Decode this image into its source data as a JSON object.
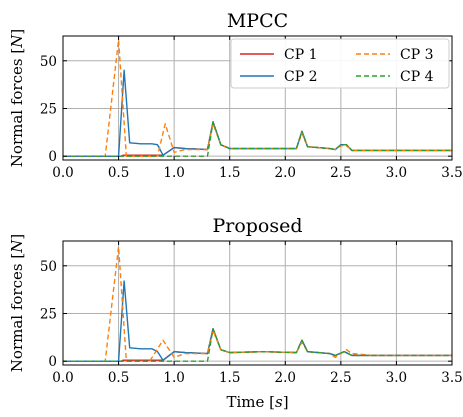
{
  "figure": {
    "xlabel": "Time [$s$]",
    "xlabel_text": "Time [",
    "xlabel_unit": "s",
    "xlabel_close": "]"
  },
  "legend": {
    "entries": [
      "CP 1",
      "CP 2",
      "CP 3",
      "CP 4"
    ]
  },
  "chart_data": [
    {
      "type": "line",
      "title": "MPCC",
      "xlabel": "",
      "ylabel_text": "Normal forces [",
      "ylabel_unit": "N",
      "ylabel_close": "]",
      "xlim": [
        0.0,
        3.5
      ],
      "ylim": [
        -2,
        63
      ],
      "xticks": [
        "0.0",
        "0.5",
        "1.0",
        "1.5",
        "2.0",
        "2.5",
        "3.0",
        "3.5"
      ],
      "yticks": [
        "0",
        "25",
        "50"
      ],
      "grid": true,
      "legend_position": "top-right",
      "series": [
        {
          "name": "CP 1",
          "color": "#d62728",
          "dash": false,
          "points": [
            [
              0,
              0
            ],
            [
              0.52,
              0
            ],
            [
              0.54,
              0.5
            ],
            [
              0.9,
              0.5
            ],
            [
              1.0,
              4.5
            ],
            [
              1.1,
              4.0
            ],
            [
              1.3,
              3.5
            ],
            [
              1.35,
              18
            ],
            [
              1.42,
              6
            ],
            [
              1.5,
              4
            ],
            [
              2.1,
              4
            ],
            [
              2.15,
              13
            ],
            [
              2.2,
              5
            ],
            [
              2.4,
              4
            ],
            [
              2.45,
              3.5
            ],
            [
              2.5,
              6
            ],
            [
              2.55,
              6
            ],
            [
              2.6,
              3
            ],
            [
              3.5,
              3
            ]
          ]
        },
        {
          "name": "CP 2",
          "color": "#1f77b4",
          "dash": false,
          "points": [
            [
              0,
              0
            ],
            [
              0.5,
              0
            ],
            [
              0.55,
              45
            ],
            [
              0.6,
              7
            ],
            [
              0.7,
              6.5
            ],
            [
              0.8,
              6.5
            ],
            [
              0.85,
              6
            ],
            [
              0.9,
              0.5
            ],
            [
              1.0,
              4.5
            ],
            [
              1.1,
              4.0
            ],
            [
              1.3,
              3.5
            ],
            [
              1.35,
              18
            ],
            [
              1.42,
              6
            ],
            [
              1.5,
              4
            ],
            [
              2.1,
              4
            ],
            [
              2.15,
              13
            ],
            [
              2.2,
              5
            ],
            [
              2.4,
              4
            ],
            [
              2.45,
              3.5
            ],
            [
              2.5,
              6
            ],
            [
              2.55,
              6
            ],
            [
              2.6,
              3
            ],
            [
              3.5,
              3
            ]
          ]
        },
        {
          "name": "CP 3",
          "color": "#ff7f0e",
          "dash": true,
          "points": [
            [
              0,
              0
            ],
            [
              0.38,
              0
            ],
            [
              0.5,
              61
            ],
            [
              0.57,
              0
            ],
            [
              0.85,
              0
            ],
            [
              0.92,
              17
            ],
            [
              1.0,
              2
            ],
            [
              1.1,
              3.5
            ],
            [
              1.3,
              3.5
            ],
            [
              1.35,
              17
            ],
            [
              1.42,
              6
            ],
            [
              1.5,
              4
            ],
            [
              2.1,
              4
            ],
            [
              2.15,
              12
            ],
            [
              2.2,
              5
            ],
            [
              2.4,
              4
            ],
            [
              2.45,
              3.5
            ],
            [
              2.5,
              5.5
            ],
            [
              2.55,
              5.5
            ],
            [
              2.6,
              3
            ],
            [
              3.5,
              3
            ]
          ]
        },
        {
          "name": "CP 4",
          "color": "#2ca02c",
          "dash": true,
          "points": [
            [
              0,
              0
            ],
            [
              1.3,
              0
            ],
            [
              1.35,
              18
            ],
            [
              1.42,
              6
            ],
            [
              1.5,
              4
            ],
            [
              2.1,
              4
            ],
            [
              2.15,
              13
            ],
            [
              2.2,
              5
            ],
            [
              2.4,
              4
            ],
            [
              2.45,
              3.5
            ],
            [
              2.5,
              6
            ],
            [
              2.55,
              6
            ],
            [
              2.6,
              3
            ],
            [
              3.5,
              3
            ]
          ]
        }
      ]
    },
    {
      "type": "line",
      "title": "Proposed",
      "xlabel": "Time [s]",
      "ylabel_text": "Normal forces [",
      "ylabel_unit": "N",
      "ylabel_close": "]",
      "xlim": [
        0.0,
        3.5
      ],
      "ylim": [
        -2,
        63
      ],
      "xticks": [
        "0.0",
        "0.5",
        "1.0",
        "1.5",
        "2.0",
        "2.5",
        "3.0",
        "3.5"
      ],
      "yticks": [
        "0",
        "25",
        "50"
      ],
      "grid": true,
      "series": [
        {
          "name": "CP 1",
          "color": "#d62728",
          "dash": false,
          "points": [
            [
              0,
              0
            ],
            [
              0.52,
              0
            ],
            [
              0.54,
              0.5
            ],
            [
              0.9,
              0.5
            ],
            [
              1.0,
              5
            ],
            [
              1.1,
              4.5
            ],
            [
              1.3,
              4
            ],
            [
              1.35,
              17
            ],
            [
              1.42,
              6
            ],
            [
              1.5,
              4.5
            ],
            [
              1.8,
              5
            ],
            [
              2.1,
              4.5
            ],
            [
              2.15,
              11
            ],
            [
              2.2,
              5
            ],
            [
              2.4,
              4
            ],
            [
              2.45,
              3
            ],
            [
              2.53,
              5
            ],
            [
              2.6,
              3
            ],
            [
              3.5,
              3
            ]
          ]
        },
        {
          "name": "CP 2",
          "color": "#1f77b4",
          "dash": false,
          "points": [
            [
              0,
              0
            ],
            [
              0.5,
              0
            ],
            [
              0.55,
              42
            ],
            [
              0.6,
              7
            ],
            [
              0.7,
              6.5
            ],
            [
              0.8,
              6.5
            ],
            [
              0.85,
              5
            ],
            [
              0.9,
              0.5
            ],
            [
              1.0,
              5
            ],
            [
              1.1,
              4.5
            ],
            [
              1.3,
              4
            ],
            [
              1.35,
              17
            ],
            [
              1.42,
              6
            ],
            [
              1.5,
              4.5
            ],
            [
              1.8,
              5
            ],
            [
              2.1,
              4.5
            ],
            [
              2.15,
              11
            ],
            [
              2.2,
              5
            ],
            [
              2.4,
              4
            ],
            [
              2.45,
              3
            ],
            [
              2.53,
              5
            ],
            [
              2.6,
              3
            ],
            [
              3.5,
              3
            ]
          ]
        },
        {
          "name": "CP 3",
          "color": "#ff7f0e",
          "dash": true,
          "points": [
            [
              0,
              0
            ],
            [
              0.38,
              0
            ],
            [
              0.5,
              60
            ],
            [
              0.57,
              0
            ],
            [
              0.78,
              0
            ],
            [
              0.9,
              11
            ],
            [
              1.0,
              2
            ],
            [
              1.1,
              4
            ],
            [
              1.3,
              4
            ],
            [
              1.35,
              16
            ],
            [
              1.42,
              6
            ],
            [
              1.5,
              4.5
            ],
            [
              1.8,
              5
            ],
            [
              2.1,
              4.5
            ],
            [
              2.15,
              10
            ],
            [
              2.2,
              5
            ],
            [
              2.4,
              4
            ],
            [
              2.45,
              2
            ],
            [
              2.55,
              6
            ],
            [
              2.6,
              4
            ],
            [
              2.8,
              3
            ],
            [
              3.5,
              3
            ]
          ]
        },
        {
          "name": "CP 4",
          "color": "#2ca02c",
          "dash": true,
          "points": [
            [
              0,
              0
            ],
            [
              1.3,
              0
            ],
            [
              1.35,
              17
            ],
            [
              1.42,
              6
            ],
            [
              1.5,
              4.5
            ],
            [
              1.8,
              5
            ],
            [
              2.1,
              4.5
            ],
            [
              2.15,
              11
            ],
            [
              2.2,
              5
            ],
            [
              2.4,
              4
            ],
            [
              2.45,
              3
            ],
            [
              2.53,
              5
            ],
            [
              2.6,
              3
            ],
            [
              3.5,
              3
            ]
          ]
        }
      ]
    }
  ]
}
